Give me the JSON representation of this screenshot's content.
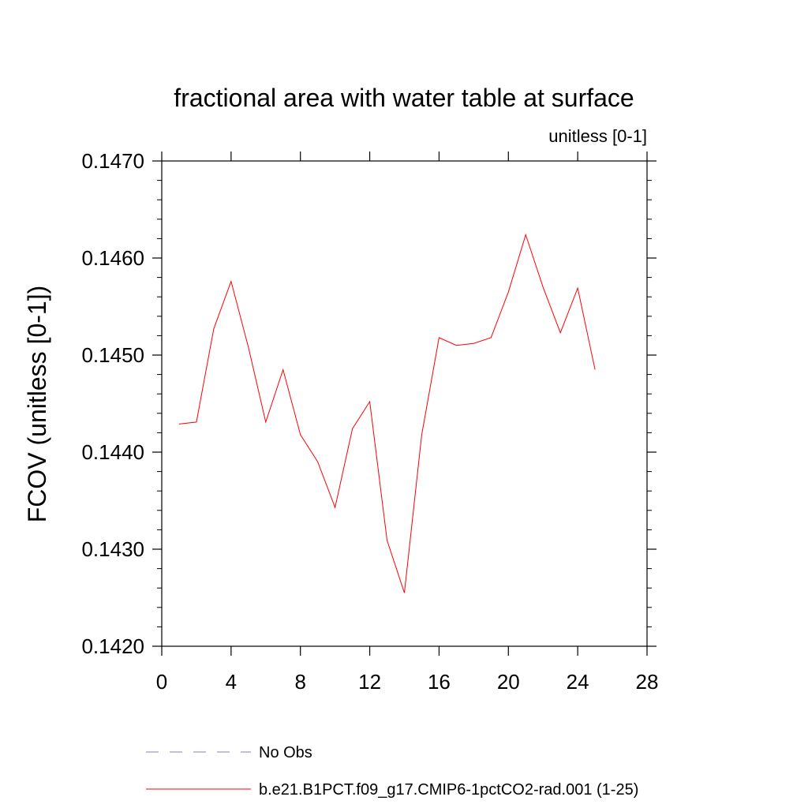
{
  "chart_data": {
    "type": "line",
    "title": "fractional area with water table at surface",
    "subtitle": "unitless [0-1]",
    "ylabel": "FCOV  (unitless [0-1])",
    "xlabel": "",
    "xlim": [
      0,
      28
    ],
    "ylim": [
      0.142,
      0.147
    ],
    "x_ticks": [
      0,
      4,
      8,
      12,
      16,
      20,
      24,
      28
    ],
    "x_tick_labels": [
      "0",
      "4",
      "8",
      "12",
      "16",
      "20",
      "24",
      "28"
    ],
    "y_ticks": [
      0.142,
      0.143,
      0.144,
      0.145,
      0.146,
      0.147
    ],
    "y_tick_labels": [
      "0.1420",
      "0.1430",
      "0.1440",
      "0.1450",
      "0.1460",
      "0.1470"
    ],
    "grid": false,
    "legend_position": "bottom",
    "series": [
      {
        "name": "b.e21.B1PCT.f09_g17.CMIP6-1pctCO2-rad.001 (1-25)",
        "color": "#ff0000",
        "style": "solid",
        "x": [
          1,
          2,
          3,
          4,
          5,
          6,
          7,
          8,
          9,
          10,
          11,
          12,
          13,
          14,
          15,
          16,
          17,
          18,
          19,
          20,
          21,
          22,
          23,
          24,
          25
        ],
        "values": [
          0.14429,
          0.14431,
          0.14527,
          0.14576,
          0.14508,
          0.14431,
          0.14485,
          0.14418,
          0.1439,
          0.14343,
          0.14424,
          0.14452,
          0.14309,
          0.14255,
          0.14418,
          0.14518,
          0.1451,
          0.14512,
          0.14518,
          0.14565,
          0.14624,
          0.1457,
          0.14523,
          0.14569,
          0.14485
        ]
      },
      {
        "name": "No Obs",
        "color": "#8080c0",
        "style": "dashed",
        "x": [],
        "values": []
      }
    ]
  }
}
